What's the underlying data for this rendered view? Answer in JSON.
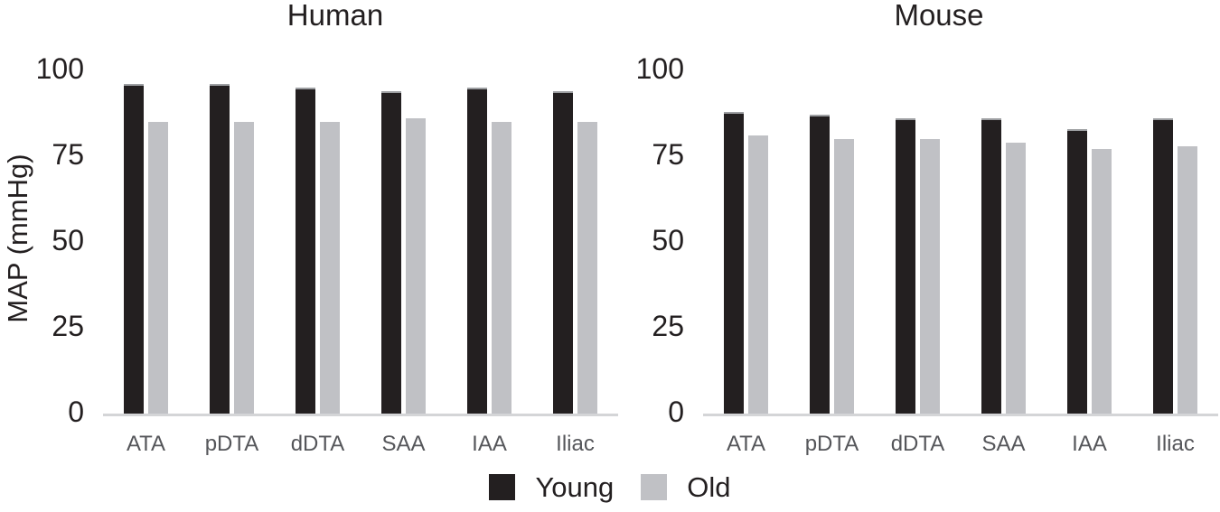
{
  "legend": {
    "position": "bottom-center",
    "items": [
      {
        "label": "Young",
        "color": "#231f20"
      },
      {
        "label": "Old",
        "color": "#c0c1c5"
      }
    ]
  },
  "chart_data": [
    {
      "type": "bar",
      "title": "Human",
      "ylabel": "MAP (mmHg)",
      "xlabel": "",
      "categories": [
        "ATA",
        "pDTA",
        "dDTA",
        "SAA",
        "IAA",
        "Iliac"
      ],
      "series": [
        {
          "name": "Young",
          "color": "#231f20",
          "values": [
            96,
            96,
            95,
            94,
            95,
            94
          ]
        },
        {
          "name": "Old",
          "color": "#c0c1c5",
          "values": [
            85,
            85,
            85,
            86,
            85,
            85
          ]
        }
      ],
      "ylim": [
        0,
        100
      ],
      "yticks": [
        0,
        25,
        50,
        75,
        100
      ],
      "grid": false,
      "axis_line_color": "#d4d5d7"
    },
    {
      "type": "bar",
      "title": "Mouse",
      "ylabel": "",
      "xlabel": "",
      "categories": [
        "ATA",
        "pDTA",
        "dDTA",
        "SAA",
        "IAA",
        "Iliac"
      ],
      "series": [
        {
          "name": "Young",
          "color": "#231f20",
          "values": [
            88,
            87,
            86,
            86,
            83,
            86
          ]
        },
        {
          "name": "Old",
          "color": "#c0c1c5",
          "values": [
            81,
            80,
            80,
            79,
            77,
            78
          ]
        }
      ],
      "ylim": [
        0,
        100
      ],
      "yticks": [
        0,
        25,
        50,
        75,
        100
      ],
      "grid": false,
      "axis_line_color": "#d4d5d7"
    }
  ]
}
